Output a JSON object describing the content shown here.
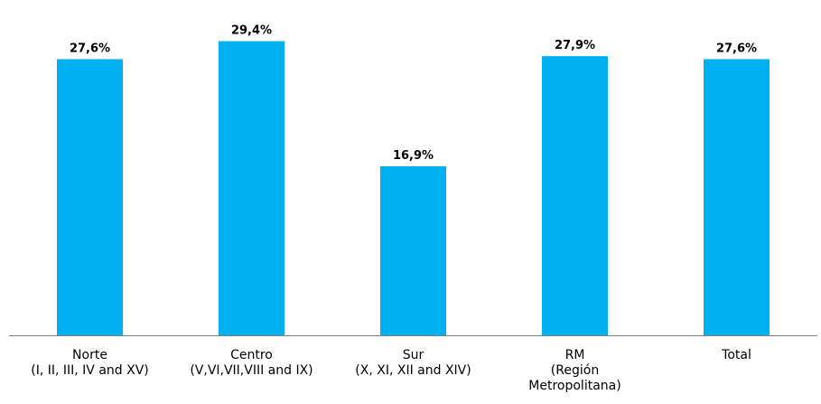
{
  "chart_data": {
    "type": "bar",
    "categories": [
      [
        "Norte",
        "(I, II, III, IV and XV)"
      ],
      [
        "Centro",
        "(V,VI,VII,VIII and IX)"
      ],
      [
        "Sur",
        "(X, XI, XII and XIV)"
      ],
      [
        "RM",
        "(Región",
        "Metropolitana)"
      ],
      [
        "Total"
      ]
    ],
    "values": [
      27.6,
      29.4,
      16.9,
      27.9,
      27.6
    ],
    "value_labels": [
      "27,6%",
      "29,4%",
      "16,9%",
      "27,9%",
      "27,6%"
    ],
    "title": "",
    "xlabel": "",
    "ylabel": "",
    "ylim": [
      0,
      30
    ],
    "grid": false,
    "bar_color": "#00b0f0",
    "axis_color": "#7f7f7f"
  }
}
